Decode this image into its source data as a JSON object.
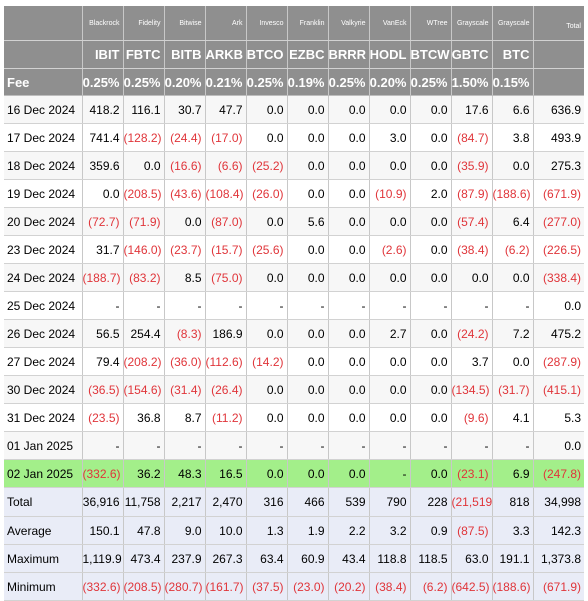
{
  "columns": [
    {
      "issuer": "Blackrock",
      "ticker": "IBIT",
      "fee": "0.25%"
    },
    {
      "issuer": "Fidelity",
      "ticker": "FBTC",
      "fee": "0.25%"
    },
    {
      "issuer": "Bitwise",
      "ticker": "BITB",
      "fee": "0.20%"
    },
    {
      "issuer": "Ark",
      "ticker": "ARKB",
      "fee": "0.21%"
    },
    {
      "issuer": "Invesco",
      "ticker": "BTCO",
      "fee": "0.25%"
    },
    {
      "issuer": "Franklin",
      "ticker": "EZBC",
      "fee": "0.19%"
    },
    {
      "issuer": "Valkyrie",
      "ticker": "BRRR",
      "fee": "0.25%"
    },
    {
      "issuer": "VanEck",
      "ticker": "HODL",
      "fee": "0.20%"
    },
    {
      "issuer": "WTree",
      "ticker": "BTCW",
      "fee": "0.25%"
    },
    {
      "issuer": "Grayscale",
      "ticker": "GBTC",
      "fee": "1.50%"
    },
    {
      "issuer": "Grayscale",
      "ticker": "BTC",
      "fee": "0.15%"
    }
  ],
  "header": {
    "total_label": "Total",
    "fee_label": "Fee"
  },
  "rows": [
    {
      "date": "16 Dec 2024",
      "values": [
        "418.2",
        "116.1",
        "30.7",
        "47.7",
        "0.0",
        "0.0",
        "0.0",
        "0.0",
        "0.0",
        "17.6",
        "6.6"
      ],
      "total": "636.9"
    },
    {
      "date": "17 Dec 2024",
      "values": [
        "741.4",
        "(128.2)",
        "(24.4)",
        "(17.0)",
        "0.0",
        "0.0",
        "0.0",
        "3.0",
        "0.0",
        "(84.7)",
        "3.8"
      ],
      "total": "493.9"
    },
    {
      "date": "18 Dec 2024",
      "values": [
        "359.6",
        "0.0",
        "(16.6)",
        "(6.6)",
        "(25.2)",
        "0.0",
        "0.0",
        "0.0",
        "0.0",
        "(35.9)",
        "0.0"
      ],
      "total": "275.3"
    },
    {
      "date": "19 Dec 2024",
      "values": [
        "0.0",
        "(208.5)",
        "(43.6)",
        "(108.4)",
        "(26.0)",
        "0.0",
        "0.0",
        "(10.9)",
        "2.0",
        "(87.9)",
        "(188.6)"
      ],
      "total": "(671.9)"
    },
    {
      "date": "20 Dec 2024",
      "values": [
        "(72.7)",
        "(71.9)",
        "0.0",
        "(87.0)",
        "0.0",
        "5.6",
        "0.0",
        "0.0",
        "0.0",
        "(57.4)",
        "6.4"
      ],
      "total": "(277.0)"
    },
    {
      "date": "23 Dec 2024",
      "values": [
        "31.7",
        "(146.0)",
        "(23.7)",
        "(15.7)",
        "(25.6)",
        "0.0",
        "0.0",
        "(2.6)",
        "0.0",
        "(38.4)",
        "(6.2)"
      ],
      "total": "(226.5)"
    },
    {
      "date": "24 Dec 2024",
      "values": [
        "(188.7)",
        "(83.2)",
        "8.5",
        "(75.0)",
        "0.0",
        "0.0",
        "0.0",
        "0.0",
        "0.0",
        "0.0",
        "0.0"
      ],
      "total": "(338.4)"
    },
    {
      "date": "25 Dec 2024",
      "values": [
        "-",
        "-",
        "-",
        "-",
        "-",
        "-",
        "-",
        "-",
        "-",
        "-",
        "-"
      ],
      "total": "0.0"
    },
    {
      "date": "26 Dec 2024",
      "values": [
        "56.5",
        "254.4",
        "(8.3)",
        "186.9",
        "0.0",
        "0.0",
        "0.0",
        "2.7",
        "0.0",
        "(24.2)",
        "7.2"
      ],
      "total": "475.2"
    },
    {
      "date": "27 Dec 2024",
      "values": [
        "79.4",
        "(208.2)",
        "(36.0)",
        "(112.6)",
        "(14.2)",
        "0.0",
        "0.0",
        "0.0",
        "0.0",
        "3.7",
        "0.0"
      ],
      "total": "(287.9)"
    },
    {
      "date": "30 Dec 2024",
      "values": [
        "(36.5)",
        "(154.6)",
        "(31.4)",
        "(26.4)",
        "0.0",
        "0.0",
        "0.0",
        "0.0",
        "0.0",
        "(134.5)",
        "(31.7)"
      ],
      "total": "(415.1)"
    },
    {
      "date": "31 Dec 2024",
      "values": [
        "(23.5)",
        "36.8",
        "8.7",
        "(11.2)",
        "0.0",
        "0.0",
        "0.0",
        "0.0",
        "0.0",
        "(9.6)",
        "4.1"
      ],
      "total": "5.3"
    },
    {
      "date": "01 Jan 2025",
      "values": [
        "-",
        "-",
        "-",
        "-",
        "-",
        "-",
        "-",
        "-",
        "-",
        "-",
        "-"
      ],
      "total": "0.0"
    },
    {
      "date": "02 Jan 2025",
      "values": [
        "(332.6)",
        "36.2",
        "48.3",
        "16.5",
        "0.0",
        "0.0",
        "0.0",
        "-",
        "0.0",
        "(23.1)",
        "6.9"
      ],
      "total": "(247.8)",
      "highlight": true
    }
  ],
  "summary": [
    {
      "label": "Total",
      "values": [
        "36,916",
        "11,758",
        "2,217",
        "2,470",
        "316",
        "466",
        "539",
        "790",
        "228",
        "(21,519)",
        "818"
      ],
      "total": "34,998"
    },
    {
      "label": "Average",
      "values": [
        "150.1",
        "47.8",
        "9.0",
        "10.0",
        "1.3",
        "1.9",
        "2.2",
        "3.2",
        "0.9",
        "(87.5)",
        "3.3"
      ],
      "total": "142.3"
    },
    {
      "label": "Maximum",
      "values": [
        "1,119.9",
        "473.4",
        "237.9",
        "267.3",
        "63.4",
        "60.9",
        "43.4",
        "118.8",
        "118.5",
        "63.0",
        "191.1"
      ],
      "total": "1,373.8"
    },
    {
      "label": "Minimum",
      "values": [
        "(332.6)",
        "(208.5)",
        "(280.7)",
        "(161.7)",
        "(37.5)",
        "(23.0)",
        "(20.2)",
        "(38.4)",
        "(6.2)",
        "(642.5)",
        "(188.6)"
      ],
      "total": "(671.9)"
    }
  ],
  "colors": {
    "header_bg": "#8f8f8f",
    "negative": "#e0353a",
    "highlight_row": "#a3ef8a",
    "summary_bg": "#e9ecf7"
  }
}
